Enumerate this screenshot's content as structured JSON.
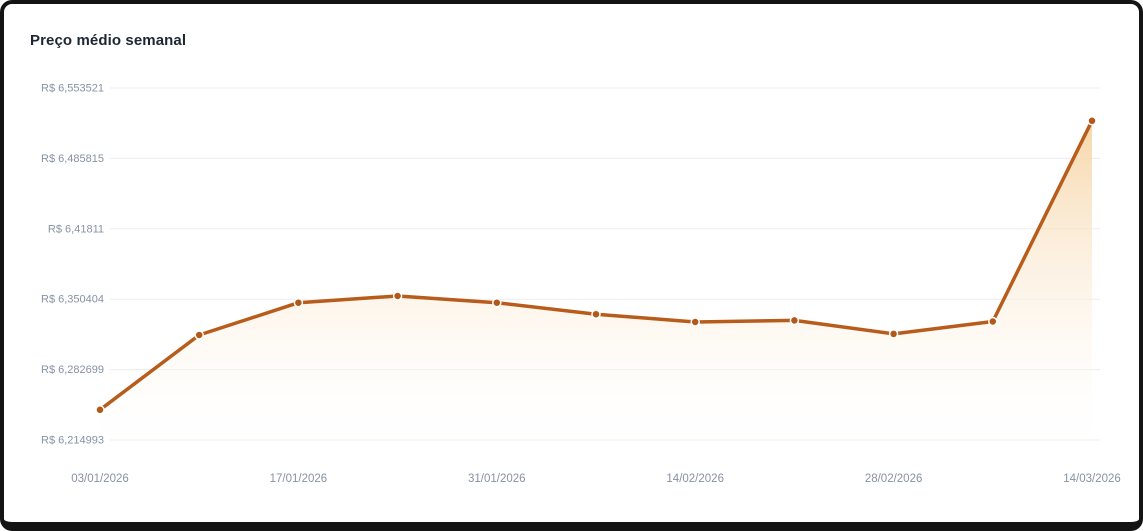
{
  "chart_data": {
    "type": "line",
    "title": "Preço médio semanal",
    "xlabel": "",
    "ylabel": "",
    "x": [
      "03/01/2026",
      "10/01/2026",
      "17/01/2026",
      "24/01/2026",
      "31/01/2026",
      "07/02/2026",
      "14/02/2026",
      "21/02/2026",
      "28/02/2026",
      "07/03/2026",
      "14/03/2026"
    ],
    "x_tick_indices": [
      0,
      2,
      4,
      6,
      8,
      10
    ],
    "x_tick_labels": [
      "03/01/2026",
      "17/01/2026",
      "31/01/2026",
      "14/02/2026",
      "28/02/2026",
      "14/03/2026"
    ],
    "series": [
      {
        "name": "Preço médio semanal",
        "values": [
          6.244,
          6.316,
          6.347,
          6.3535,
          6.347,
          6.336,
          6.3285,
          6.33,
          6.317,
          6.329,
          6.522
        ]
      }
    ],
    "y_ticks": [
      {
        "label": "R$ 6,214993",
        "value": 6.214993
      },
      {
        "label": "R$ 6,282699",
        "value": 6.282699
      },
      {
        "label": "R$ 6,350404",
        "value": 6.350404
      },
      {
        "label": "R$ 6,41811",
        "value": 6.41811
      },
      {
        "label": "R$ 6,485815",
        "value": 6.485815
      },
      {
        "label": "R$ 6,553521",
        "value": 6.553521
      }
    ],
    "ylim": [
      6.214993,
      6.553521
    ],
    "grid": true,
    "legend": false,
    "currency_prefix": "R$",
    "colors": {
      "line": "#b85c1c",
      "marker": "#b4581a",
      "area_top": "#f6d3a2",
      "area_bottom": "#ffffff",
      "grid": "#ededf1",
      "axis_label": "#8593a4",
      "title": "#1d2733"
    }
  }
}
